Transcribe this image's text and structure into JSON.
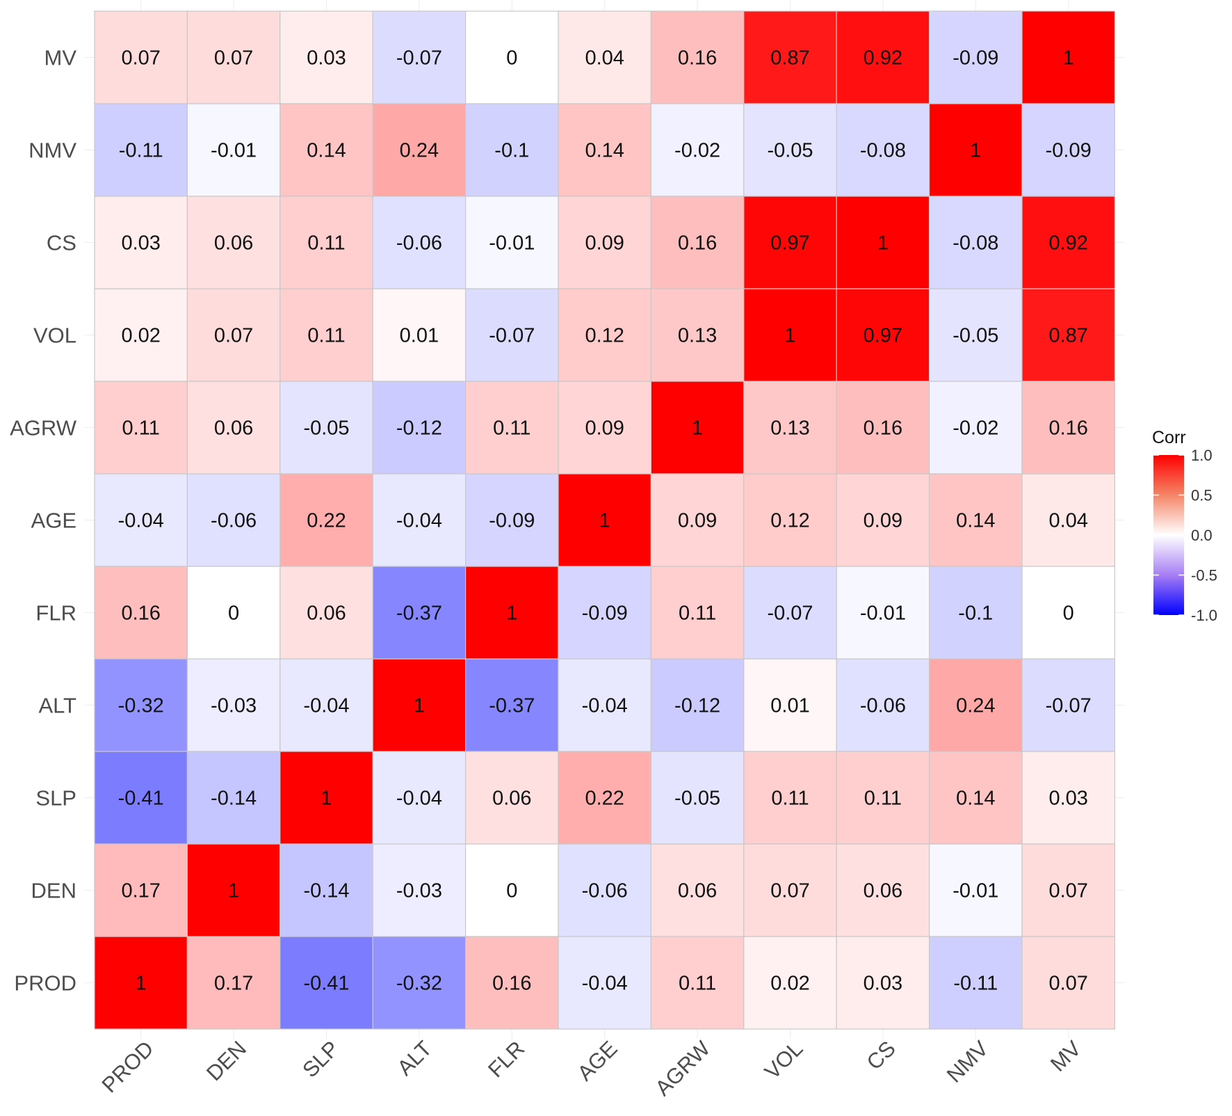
{
  "chart_data": {
    "type": "heatmap",
    "variables": [
      "PROD",
      "DEN",
      "SLP",
      "ALT",
      "FLR",
      "AGE",
      "AGRW",
      "VOL",
      "CS",
      "NMV",
      "MV"
    ],
    "matrix_labels": [
      [
        "1",
        "0.17",
        "-0.41",
        "-0.32",
        "0.16",
        "-0.04",
        "0.11",
        "0.02",
        "0.03",
        "-0.11",
        "0.07"
      ],
      [
        "0.17",
        "1",
        "-0.14",
        "-0.03",
        "0",
        "-0.06",
        "0.06",
        "0.07",
        "0.06",
        "-0.01",
        "0.07"
      ],
      [
        "-0.41",
        "-0.14",
        "1",
        "-0.04",
        "0.06",
        "0.22",
        "-0.05",
        "0.11",
        "0.11",
        "0.14",
        "0.03"
      ],
      [
        "-0.32",
        "-0.03",
        "-0.04",
        "1",
        "-0.37",
        "-0.04",
        "-0.12",
        "0.01",
        "-0.06",
        "0.24",
        "-0.07"
      ],
      [
        "0.16",
        "0",
        "0.06",
        "-0.37",
        "1",
        "-0.09",
        "0.11",
        "-0.07",
        "-0.01",
        "-0.1",
        "0"
      ],
      [
        "-0.04",
        "-0.06",
        "0.22",
        "-0.04",
        "-0.09",
        "1",
        "0.09",
        "0.12",
        "0.09",
        "0.14",
        "0.04"
      ],
      [
        "0.11",
        "0.06",
        "-0.05",
        "-0.12",
        "0.11",
        "0.09",
        "1",
        "0.13",
        "0.16",
        "-0.02",
        "0.16"
      ],
      [
        "0.02",
        "0.07",
        "0.11",
        "0.01",
        "-0.07",
        "0.12",
        "0.13",
        "1",
        "0.97",
        "-0.05",
        "0.87"
      ],
      [
        "0.03",
        "0.06",
        "0.11",
        "-0.06",
        "-0.01",
        "0.09",
        "0.16",
        "0.97",
        "1",
        "-0.08",
        "0.92"
      ],
      [
        "-0.11",
        "-0.01",
        "0.14",
        "0.24",
        "-0.1",
        "0.14",
        "-0.02",
        "-0.05",
        "-0.08",
        "1",
        "-0.09"
      ],
      [
        "0.07",
        "0.07",
        "0.03",
        "-0.07",
        "0",
        "0.04",
        "0.16",
        "0.87",
        "0.92",
        "-0.09",
        "1"
      ]
    ],
    "legend": {
      "title": "Corr",
      "ticks": [
        "1.0",
        "0.5",
        "0.0",
        "-0.5",
        "-1.0"
      ],
      "range": [
        -1,
        1
      ],
      "placement": "right"
    },
    "colors": {
      "low": "#0000ff",
      "mid": "#ffffff",
      "high": "#ff0000",
      "border": "#c8c8c8"
    }
  }
}
